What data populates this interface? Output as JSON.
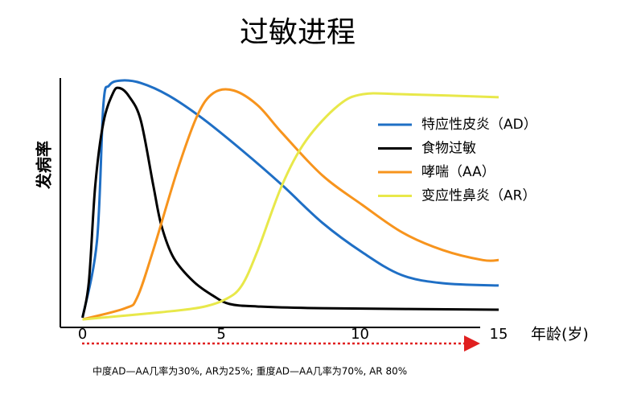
{
  "chart_data": {
    "type": "line",
    "title": "过敏进程",
    "y_label": "发病率",
    "x_label": "年龄(岁)",
    "note": "中度AD—AA几率为30%, AR为25%; 重度AD—AA几率为70%, AR 80%",
    "xlim": [
      -0.8,
      15
    ],
    "xticks": [
      0,
      5,
      10,
      15
    ],
    "ylim": [
      0,
      100
    ],
    "series": [
      {
        "name": "特应性皮炎（AD）",
        "color": "#1f6fc5",
        "x": [
          0,
          0.52,
          0.75,
          0.96,
          1.39,
          2.1,
          3.1,
          4.3,
          5.75,
          7.2,
          8.64,
          10.1,
          11.5,
          13,
          15
        ],
        "values": [
          3.9,
          34.5,
          89,
          97,
          99,
          98,
          93,
          84,
          71,
          57,
          42,
          30,
          21,
          17.7,
          16.8
        ]
      },
      {
        "name": "食物过敏",
        "color": "#000000",
        "x": [
          0,
          0.23,
          0.46,
          0.75,
          1.1,
          1.33,
          1.68,
          2.1,
          2.55,
          2.84,
          3.28,
          4.0,
          4.72,
          5.3,
          6.3,
          8.6,
          15
        ],
        "values": [
          3.9,
          18.4,
          57,
          82,
          94,
          96,
          92.6,
          83,
          57,
          41,
          28,
          18.4,
          12.6,
          9.4,
          8.4,
          7.7,
          7.1
        ]
      },
      {
        "name": "哮喘（AA）",
        "color": "#f7941d",
        "x": [
          0,
          1.54,
          1.97,
          2.55,
          3.42,
          4.14,
          4.72,
          5.45,
          6.32,
          7.19,
          8.64,
          10.1,
          11.54,
          12.99,
          14.43,
          15
        ],
        "values": [
          3.2,
          7.7,
          12,
          31,
          63,
          85,
          94,
          95,
          89,
          78,
          61,
          49,
          38,
          31,
          27,
          27
        ]
      },
      {
        "name": "变应性鼻炎（AR）",
        "color": "#e8e84a",
        "x": [
          0,
          2.84,
          4.29,
          5.16,
          5.74,
          6.32,
          7.19,
          8.06,
          9.22,
          10.1,
          11.54,
          15
        ],
        "values": [
          3.2,
          6.1,
          8.1,
          11.3,
          16.8,
          31,
          57,
          75,
          89,
          93.5,
          93.5,
          92.3
        ]
      }
    ]
  }
}
